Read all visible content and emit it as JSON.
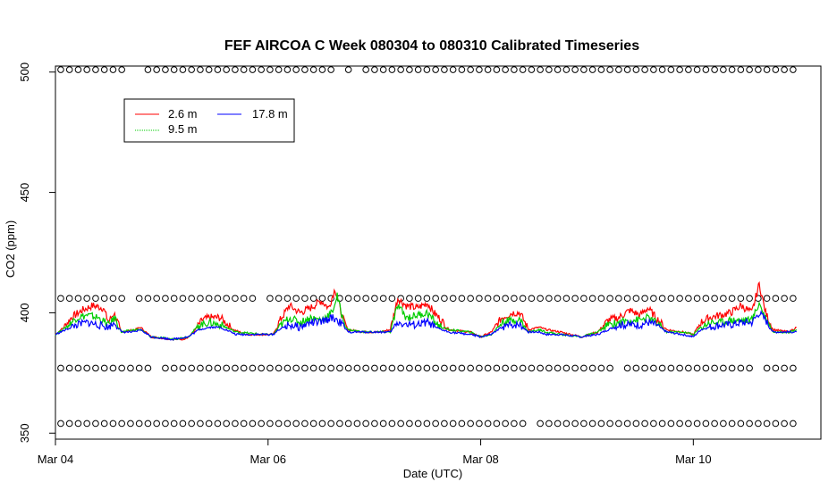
{
  "chart_data": {
    "type": "line",
    "title": "FEF AIRCOA C  Week 080304 to 080310  Calibrated Timeseries",
    "xlabel": "Date (UTC)",
    "ylabel": "CO2 (ppm)",
    "xlim": [
      0,
      7.2
    ],
    "ylim": [
      347.5,
      502.5
    ],
    "x_ticks": [
      {
        "value": 0,
        "label": "Mar 04"
      },
      {
        "value": 2,
        "label": "Mar 06"
      },
      {
        "value": 4,
        "label": "Mar 08"
      },
      {
        "value": 6,
        "label": "Mar 10"
      }
    ],
    "y_ticks": [
      {
        "value": 350,
        "label": "350"
      },
      {
        "value": 400,
        "label": "400"
      },
      {
        "value": 450,
        "label": "450"
      },
      {
        "value": 500,
        "label": "500"
      }
    ],
    "x_unit_note": "days since Mar 04 00:00 UTC",
    "legend": {
      "position": "top-left",
      "columns": 2
    },
    "series": [
      {
        "name": "2.6 m",
        "color": "#ff0000",
        "points": [
          [
            0,
            391
          ],
          [
            0.08,
            394
          ],
          [
            0.15,
            398
          ],
          [
            0.25,
            401
          ],
          [
            0.35,
            403
          ],
          [
            0.45,
            402
          ],
          [
            0.5,
            396
          ],
          [
            0.55,
            400
          ],
          [
            0.62,
            392
          ],
          [
            0.75,
            393
          ],
          [
            0.8,
            394
          ],
          [
            0.9,
            390
          ],
          [
            1.1,
            389
          ],
          [
            1.2,
            389
          ],
          [
            1.25,
            390
          ],
          [
            1.3,
            392
          ],
          [
            1.38,
            397
          ],
          [
            1.45,
            398
          ],
          [
            1.55,
            398
          ],
          [
            1.6,
            396
          ],
          [
            1.67,
            393
          ],
          [
            1.8,
            391
          ],
          [
            1.95,
            391
          ],
          [
            2.05,
            391
          ],
          [
            2.1,
            396
          ],
          [
            2.2,
            403
          ],
          [
            2.3,
            400
          ],
          [
            2.4,
            402
          ],
          [
            2.5,
            405
          ],
          [
            2.57,
            402
          ],
          [
            2.63,
            410
          ],
          [
            2.7,
            398
          ],
          [
            2.75,
            393
          ],
          [
            2.9,
            392
          ],
          [
            3.05,
            392
          ],
          [
            3.15,
            393
          ],
          [
            3.22,
            406
          ],
          [
            3.3,
            403
          ],
          [
            3.4,
            402
          ],
          [
            3.5,
            404
          ],
          [
            3.56,
            400
          ],
          [
            3.63,
            397
          ],
          [
            3.7,
            393
          ],
          [
            3.9,
            392
          ],
          [
            4.0,
            390
          ],
          [
            4.1,
            392
          ],
          [
            4.2,
            398
          ],
          [
            4.3,
            400
          ],
          [
            4.37,
            400
          ],
          [
            4.45,
            393
          ],
          [
            4.55,
            394
          ],
          [
            4.62,
            393
          ],
          [
            4.75,
            392
          ],
          [
            4.95,
            390
          ],
          [
            5.1,
            392
          ],
          [
            5.2,
            397
          ],
          [
            5.3,
            398
          ],
          [
            5.4,
            401
          ],
          [
            5.5,
            399
          ],
          [
            5.57,
            402
          ],
          [
            5.65,
            398
          ],
          [
            5.75,
            393
          ],
          [
            5.9,
            392
          ],
          [
            6.0,
            391
          ],
          [
            6.07,
            396
          ],
          [
            6.15,
            398
          ],
          [
            6.25,
            399
          ],
          [
            6.35,
            400
          ],
          [
            6.45,
            403
          ],
          [
            6.55,
            400
          ],
          [
            6.62,
            412
          ],
          [
            6.68,
            400
          ],
          [
            6.75,
            393
          ],
          [
            6.9,
            392
          ],
          [
            6.97,
            394
          ]
        ]
      },
      {
        "name": "9.5 m",
        "color": "#00cd00",
        "points": [
          [
            0,
            391
          ],
          [
            0.1,
            394
          ],
          [
            0.2,
            398
          ],
          [
            0.3,
            399
          ],
          [
            0.4,
            398
          ],
          [
            0.5,
            395
          ],
          [
            0.56,
            398
          ],
          [
            0.62,
            392
          ],
          [
            0.75,
            393
          ],
          [
            0.8,
            393
          ],
          [
            0.9,
            390
          ],
          [
            1.1,
            389
          ],
          [
            1.25,
            390
          ],
          [
            1.35,
            395
          ],
          [
            1.45,
            396
          ],
          [
            1.55,
            395
          ],
          [
            1.6,
            394
          ],
          [
            1.7,
            392
          ],
          [
            1.95,
            391
          ],
          [
            2.05,
            391
          ],
          [
            2.1,
            394
          ],
          [
            2.2,
            398
          ],
          [
            2.3,
            396
          ],
          [
            2.4,
            398
          ],
          [
            2.5,
            397
          ],
          [
            2.6,
            400
          ],
          [
            2.65,
            407
          ],
          [
            2.7,
            398
          ],
          [
            2.75,
            393
          ],
          [
            2.9,
            392
          ],
          [
            3.05,
            392
          ],
          [
            3.15,
            392
          ],
          [
            3.22,
            403
          ],
          [
            3.3,
            398
          ],
          [
            3.4,
            399
          ],
          [
            3.5,
            400
          ],
          [
            3.57,
            396
          ],
          [
            3.63,
            394
          ],
          [
            3.7,
            393
          ],
          [
            3.9,
            392
          ],
          [
            4.0,
            390
          ],
          [
            4.1,
            391
          ],
          [
            4.2,
            396
          ],
          [
            4.3,
            397
          ],
          [
            4.37,
            397
          ],
          [
            4.45,
            392
          ],
          [
            4.55,
            393
          ],
          [
            4.62,
            392
          ],
          [
            4.75,
            391
          ],
          [
            4.95,
            390
          ],
          [
            5.1,
            392
          ],
          [
            5.2,
            395
          ],
          [
            5.3,
            396
          ],
          [
            5.4,
            397
          ],
          [
            5.5,
            397
          ],
          [
            5.57,
            398
          ],
          [
            5.65,
            396
          ],
          [
            5.75,
            392
          ],
          [
            5.9,
            392
          ],
          [
            6.0,
            391
          ],
          [
            6.07,
            394
          ],
          [
            6.15,
            396
          ],
          [
            6.25,
            396
          ],
          [
            6.35,
            397
          ],
          [
            6.45,
            397
          ],
          [
            6.55,
            397
          ],
          [
            6.62,
            404
          ],
          [
            6.68,
            398
          ],
          [
            6.75,
            392
          ],
          [
            6.9,
            392
          ],
          [
            6.97,
            393
          ]
        ]
      },
      {
        "name": "17.8 m",
        "color": "#0000ff",
        "points": [
          [
            0,
            391
          ],
          [
            0.1,
            393
          ],
          [
            0.2,
            395
          ],
          [
            0.3,
            396
          ],
          [
            0.4,
            395
          ],
          [
            0.5,
            394
          ],
          [
            0.56,
            396
          ],
          [
            0.62,
            392
          ],
          [
            0.75,
            392
          ],
          [
            0.8,
            393
          ],
          [
            0.9,
            390
          ],
          [
            1.1,
            389
          ],
          [
            1.25,
            390
          ],
          [
            1.35,
            393
          ],
          [
            1.45,
            394
          ],
          [
            1.55,
            394
          ],
          [
            1.6,
            393
          ],
          [
            1.7,
            391
          ],
          [
            1.95,
            391
          ],
          [
            2.05,
            391
          ],
          [
            2.1,
            393
          ],
          [
            2.2,
            395
          ],
          [
            2.3,
            394
          ],
          [
            2.4,
            396
          ],
          [
            2.5,
            396
          ],
          [
            2.6,
            398
          ],
          [
            2.65,
            397
          ],
          [
            2.7,
            395
          ],
          [
            2.75,
            392
          ],
          [
            2.9,
            392
          ],
          [
            3.05,
            392
          ],
          [
            3.15,
            392
          ],
          [
            3.22,
            396
          ],
          [
            3.3,
            395
          ],
          [
            3.4,
            395
          ],
          [
            3.5,
            396
          ],
          [
            3.57,
            394
          ],
          [
            3.63,
            393
          ],
          [
            3.7,
            392
          ],
          [
            3.9,
            391
          ],
          [
            4.0,
            390
          ],
          [
            4.1,
            391
          ],
          [
            4.2,
            394
          ],
          [
            4.3,
            395
          ],
          [
            4.37,
            395
          ],
          [
            4.45,
            392
          ],
          [
            4.55,
            392
          ],
          [
            4.62,
            391
          ],
          [
            4.75,
            391
          ],
          [
            4.95,
            390
          ],
          [
            5.1,
            391
          ],
          [
            5.2,
            393
          ],
          [
            5.3,
            395
          ],
          [
            5.4,
            395
          ],
          [
            5.5,
            395
          ],
          [
            5.57,
            396
          ],
          [
            5.65,
            395
          ],
          [
            5.75,
            392
          ],
          [
            5.9,
            391
          ],
          [
            6.0,
            390
          ],
          [
            6.07,
            393
          ],
          [
            6.15,
            394
          ],
          [
            6.25,
            395
          ],
          [
            6.35,
            395
          ],
          [
            6.45,
            396
          ],
          [
            6.55,
            396
          ],
          [
            6.62,
            400
          ],
          [
            6.68,
            397
          ],
          [
            6.75,
            392
          ],
          [
            6.9,
            392
          ],
          [
            6.97,
            392
          ]
        ]
      }
    ],
    "markers": {
      "shape": "open-circle",
      "color": "#000000",
      "rows": [
        {
          "y": 501,
          "gaps": [
            [
              0.7,
              0.82
            ],
            [
              2.65,
              2.75
            ],
            [
              2.78,
              2.9
            ]
          ]
        },
        {
          "y": 406,
          "gaps": [
            [
              0.65,
              0.73
            ],
            [
              1.9,
              1.98
            ],
            [
              6.2,
              6.28
            ]
          ]
        },
        {
          "y": 377,
          "gaps": [
            [
              0.95,
              1.03
            ],
            [
              5.25,
              5.33
            ],
            [
              6.55,
              6.65
            ]
          ]
        },
        {
          "y": 354,
          "gaps": [
            [
              4.45,
              4.5
            ],
            [
              6.7,
              6.75
            ]
          ]
        }
      ],
      "x_range": [
        0.05,
        6.98
      ],
      "spacing": 0.082
    }
  }
}
